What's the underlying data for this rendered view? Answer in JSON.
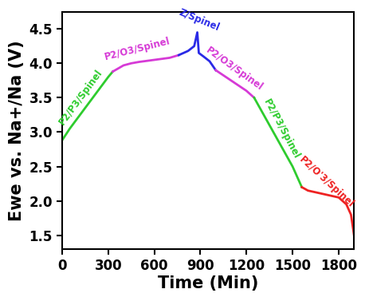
{
  "chart_data": {
    "type": "line",
    "x_label": "Time (Min)",
    "y_label": "Ewe vs. Na+/Na (V)",
    "xlim": [
      0,
      1900
    ],
    "xticks": [
      0,
      300,
      600,
      900,
      1200,
      1500,
      1800
    ],
    "ylim": [
      1.3,
      4.75
    ],
    "yticks": [
      1.5,
      2.0,
      2.5,
      3.0,
      3.5,
      4.0,
      4.5
    ],
    "grid": false,
    "series": [
      {
        "name": "P2/P3/Spinel",
        "color": "#2ecc2e",
        "x": [
          0,
          50,
          100,
          150,
          200,
          250,
          300,
          330
        ],
        "values": [
          2.88,
          3.05,
          3.2,
          3.35,
          3.5,
          3.65,
          3.8,
          3.88
        ]
      },
      {
        "name": "P2/O3/Spinel",
        "color": "#d63ad6",
        "x": [
          330,
          400,
          450,
          500,
          600,
          700,
          760
        ],
        "values": [
          3.88,
          3.97,
          4.0,
          4.02,
          4.05,
          4.08,
          4.12
        ]
      },
      {
        "name": "Z/Spinel",
        "color": "#2a2ae6",
        "x": [
          760,
          820,
          860,
          880,
          885,
          890,
          920,
          960,
          1000
        ],
        "values": [
          4.12,
          4.18,
          4.25,
          4.45,
          4.3,
          4.15,
          4.1,
          4.03,
          3.9
        ]
      },
      {
        "name": "P2/O3/Spinel",
        "color": "#d63ad6",
        "x": [
          1000,
          1100,
          1200,
          1250
        ],
        "values": [
          3.9,
          3.75,
          3.6,
          3.5
        ]
      },
      {
        "name": "P2/P3/Spinel",
        "color": "#2ecc2e",
        "x": [
          1250,
          1300,
          1350,
          1400,
          1450,
          1500,
          1550,
          1560
        ],
        "values": [
          3.5,
          3.3,
          3.1,
          2.9,
          2.7,
          2.5,
          2.25,
          2.2
        ]
      },
      {
        "name": "P2/O'3/Spinel",
        "color": "#ee2222",
        "x": [
          1560,
          1600,
          1700,
          1800,
          1850,
          1880,
          1900
        ],
        "values": [
          2.2,
          2.15,
          2.1,
          2.05,
          1.95,
          1.8,
          1.5
        ]
      }
    ]
  }
}
